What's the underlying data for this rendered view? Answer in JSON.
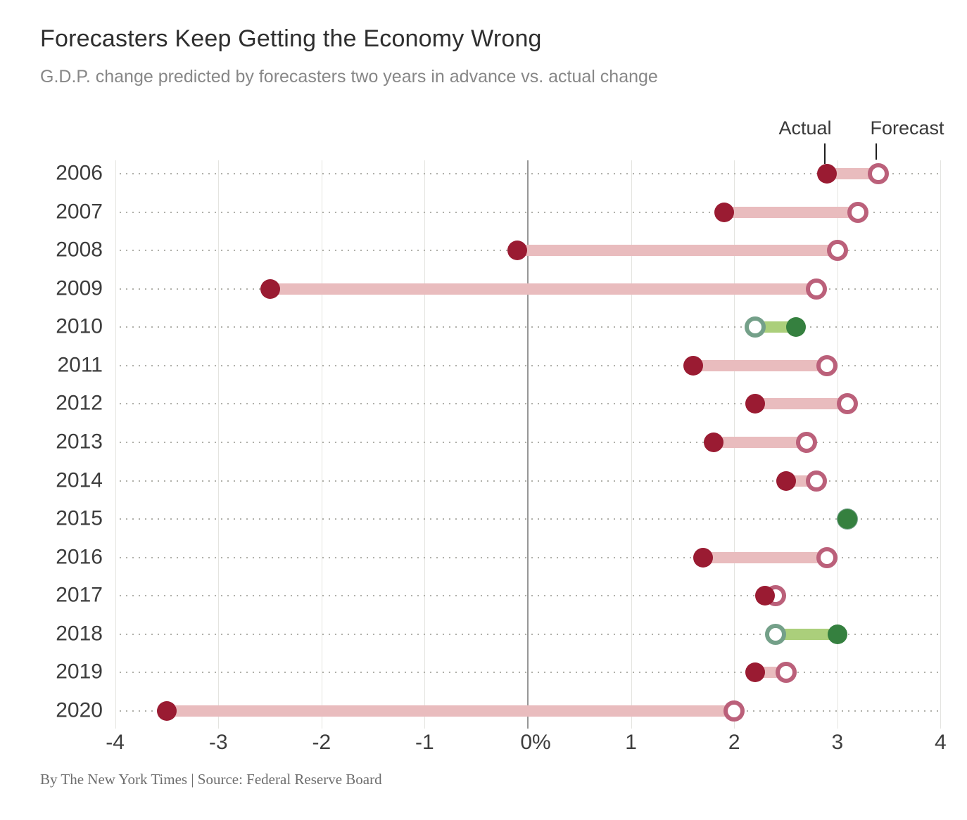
{
  "header": {
    "title": "Forecasters Keep Getting the Economy Wrong",
    "subtitle": "G.D.P. change predicted by forecasters two years in advance vs. actual change"
  },
  "legend": {
    "actual": "Actual",
    "forecast": "Forecast"
  },
  "footer": {
    "credit": "By The New York Times | Source: Federal Reserve Board"
  },
  "chart_data": {
    "type": "dumbbell",
    "title": "Forecasters Keep Getting the Economy Wrong",
    "subtitle": "G.D.P. change predicted by forecasters two years in advance vs. actual change",
    "categories": [
      "2006",
      "2007",
      "2008",
      "2009",
      "2010",
      "2011",
      "2012",
      "2013",
      "2014",
      "2015",
      "2016",
      "2017",
      "2018",
      "2019",
      "2020"
    ],
    "series": [
      {
        "name": "Forecast",
        "values": [
          3.4,
          3.2,
          3.0,
          2.8,
          2.2,
          2.9,
          3.1,
          2.7,
          2.8,
          3.1,
          2.9,
          2.4,
          2.4,
          2.5,
          2.0
        ]
      },
      {
        "name": "Actual",
        "values": [
          2.9,
          1.9,
          -0.1,
          -2.5,
          2.6,
          1.6,
          2.2,
          1.8,
          2.5,
          3.1,
          1.7,
          2.3,
          3.0,
          2.2,
          -3.5
        ]
      }
    ],
    "x_ticks": [
      {
        "value": -4,
        "label": "-4"
      },
      {
        "value": -3,
        "label": "-3"
      },
      {
        "value": -2,
        "label": "-2"
      },
      {
        "value": -1,
        "label": "-1"
      },
      {
        "value": 0,
        "label": "0%"
      },
      {
        "value": 1,
        "label": "1"
      },
      {
        "value": 2,
        "label": "2"
      },
      {
        "value": 3,
        "label": "3"
      },
      {
        "value": 4,
        "label": "4"
      }
    ],
    "xlim": [
      -4,
      4
    ],
    "grid": "vertical",
    "zero_line": true,
    "legend_position": "top-right",
    "row_dotted_leaders": true,
    "colors": {
      "actual_miss": "#9a1b32",
      "bar_miss": "#e9bcbe",
      "forecast_ring_miss": "#bb607a",
      "actual_beat": "#35803f",
      "bar_beat": "#abcf7b",
      "forecast_ring_beat": "#74a089",
      "gridline": "#e4e4e0",
      "zero_line": "#979797",
      "dotted_leader": "#b0b0aa"
    }
  }
}
